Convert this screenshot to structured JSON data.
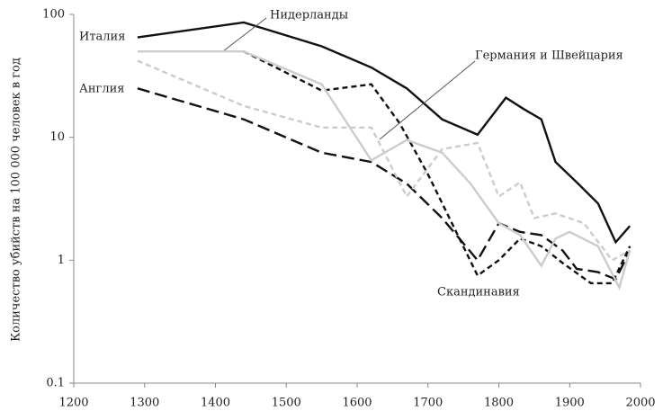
{
  "chart_data": {
    "type": "line",
    "yscale": "log",
    "ylabel": "Количество убийств на 100 000 человек в год",
    "xlim": [
      1200,
      2000
    ],
    "xticks": [
      1200,
      1300,
      1400,
      1500,
      1600,
      1700,
      1800,
      1900,
      2000
    ],
    "ylim": [
      0.1,
      100
    ],
    "yticks": [
      0.1,
      1,
      10,
      100
    ],
    "series": [
      {
        "name": "Италия",
        "color": "#111111",
        "dash": "solid",
        "x": [
          1290,
          1440,
          1550,
          1620,
          1670,
          1720,
          1770,
          1810,
          1835,
          1860,
          1880,
          1910,
          1940,
          1965,
          1985
        ],
        "values": [
          65,
          86,
          55,
          37,
          25,
          14,
          10.5,
          21,
          17,
          14,
          6.3,
          4.3,
          2.9,
          1.4,
          1.9
        ]
      },
      {
        "name": "Нидерланды",
        "color": "#111111",
        "dash": "short",
        "x": [
          1440,
          1550,
          1620,
          1660,
          1700,
          1770,
          1800,
          1830,
          1860,
          1890,
          1930,
          1960,
          1985
        ],
        "values": [
          50,
          24,
          27,
          13,
          5,
          0.75,
          1.0,
          1.5,
          1.3,
          0.95,
          0.65,
          0.65,
          1.3
        ]
      },
      {
        "name": "Англия",
        "color": "#111111",
        "dash": "long",
        "x": [
          1290,
          1440,
          1550,
          1620,
          1670,
          1720,
          1770,
          1800,
          1830,
          1860,
          1890,
          1910,
          1940,
          1965,
          1985
        ],
        "values": [
          25,
          14,
          7.5,
          6.3,
          4.2,
          2.2,
          1.0,
          2.0,
          1.7,
          1.6,
          1.2,
          0.85,
          0.8,
          0.7,
          1.2
        ]
      },
      {
        "name": "Германия и Швейцария",
        "color": "#cccccc",
        "dash": "short",
        "x": [
          1290,
          1440,
          1550,
          1620,
          1670,
          1720,
          1770,
          1800,
          1830,
          1850,
          1880,
          1920,
          1960,
          1985
        ],
        "values": [
          42,
          18,
          12,
          12,
          3.3,
          8,
          9,
          3.3,
          4.3,
          2.2,
          2.4,
          2.0,
          1.0,
          1.2
        ]
      },
      {
        "name": "Скандинавия",
        "color": "#cccccc",
        "dash": "solid",
        "x": [
          1290,
          1440,
          1550,
          1620,
          1670,
          1720,
          1760,
          1800,
          1830,
          1860,
          1880,
          1900,
          1940,
          1970,
          1985
        ],
        "values": [
          50,
          50,
          27,
          6.5,
          9.5,
          7.5,
          4.2,
          2.0,
          1.6,
          0.9,
          1.5,
          1.7,
          1.3,
          0.6,
          1.2
        ]
      }
    ]
  }
}
